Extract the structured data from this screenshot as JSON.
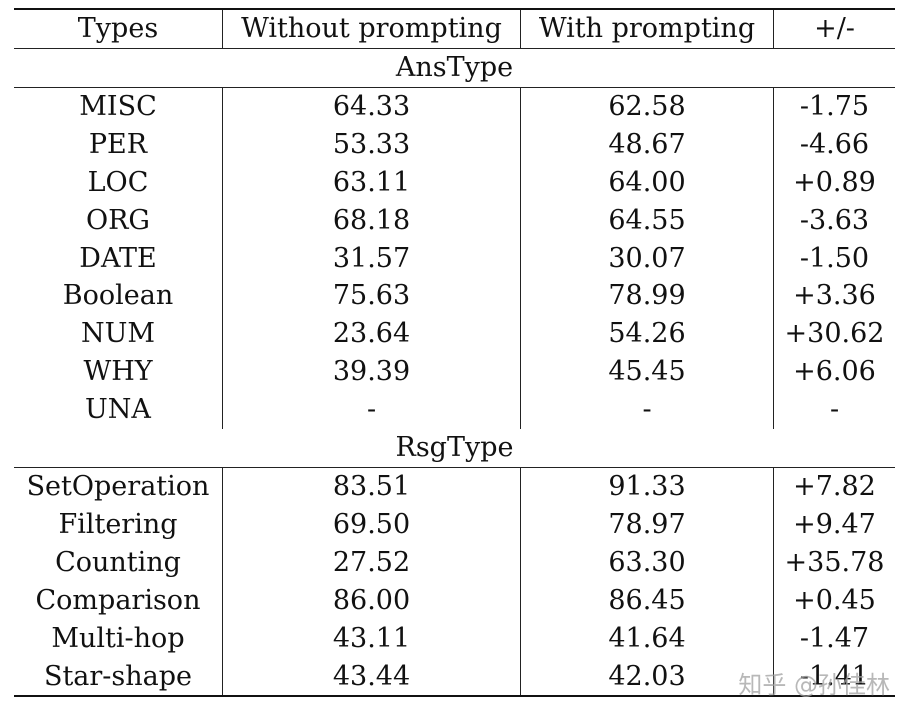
{
  "header": {
    "types": "Types",
    "without": "Without prompting",
    "with": "With prompting",
    "diff": "+/-"
  },
  "sections": [
    {
      "title": "AnsType",
      "rows": [
        {
          "type": "MISC",
          "without": "64.33",
          "with": "62.58",
          "diff": "-1.75"
        },
        {
          "type": "PER",
          "without": "53.33",
          "with": "48.67",
          "diff": "-4.66"
        },
        {
          "type": "LOC",
          "without": "63.11",
          "with": "64.00",
          "diff": "+0.89"
        },
        {
          "type": "ORG",
          "without": "68.18",
          "with": "64.55",
          "diff": "-3.63"
        },
        {
          "type": "DATE",
          "without": "31.57",
          "with": "30.07",
          "diff": "-1.50"
        },
        {
          "type": "Boolean",
          "without": "75.63",
          "with": "78.99",
          "diff": "+3.36"
        },
        {
          "type": "NUM",
          "without": "23.64",
          "with": "54.26",
          "diff": "+30.62"
        },
        {
          "type": "WHY",
          "without": "39.39",
          "with": "45.45",
          "diff": "+6.06"
        },
        {
          "type": "UNA",
          "without": "-",
          "with": "-",
          "diff": "-"
        }
      ]
    },
    {
      "title": "RsgType",
      "rows": [
        {
          "type": "SetOperation",
          "without": "83.51",
          "with": "91.33",
          "diff": "+7.82"
        },
        {
          "type": "Filtering",
          "without": "69.50",
          "with": "78.97",
          "diff": "+9.47"
        },
        {
          "type": "Counting",
          "without": "27.52",
          "with": "63.30",
          "diff": "+35.78"
        },
        {
          "type": "Comparison",
          "without": "86.00",
          "with": "86.45",
          "diff": "+0.45"
        },
        {
          "type": "Multi-hop",
          "without": "43.11",
          "with": "41.64",
          "diff": "-1.47"
        },
        {
          "type": "Star-shape",
          "without": "43.44",
          "with": "42.03",
          "diff": "-1.41"
        }
      ]
    }
  ],
  "watermark": "知乎 @孙佳林"
}
